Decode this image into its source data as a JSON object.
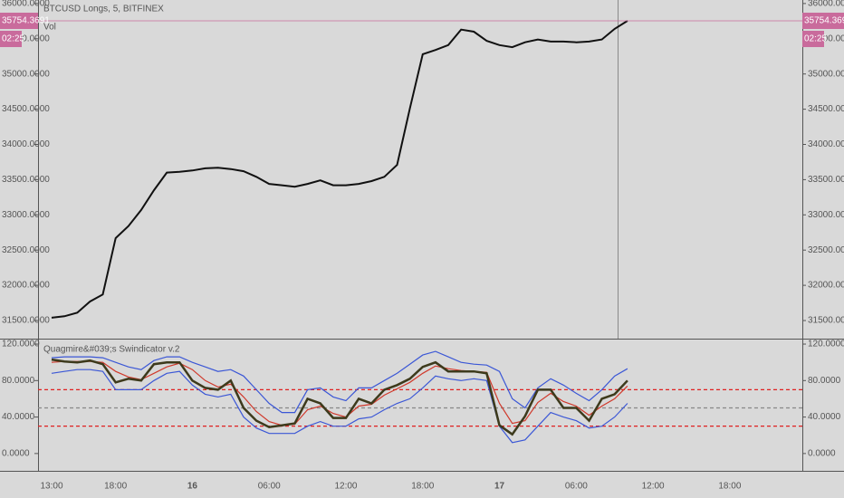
{
  "chart_data": [
    {
      "type": "line",
      "title": "BTCUSD Longs, 5, BITFINEX",
      "subtitle": "Vol",
      "countdown": "02:25",
      "categories": [
        "13:00",
        null,
        null,
        null,
        null,
        "18:00",
        null,
        null,
        null,
        null,
        null,
        "16",
        null,
        null,
        null,
        null,
        null,
        "06:00",
        null,
        null,
        null,
        null,
        null,
        "12:00",
        null,
        null,
        null,
        null,
        null,
        "18:00",
        null,
        null,
        null,
        null,
        null,
        "17",
        null,
        null,
        null,
        null,
        null,
        "06:00",
        null,
        null,
        null,
        null,
        null,
        "12:00",
        null,
        null,
        null,
        null,
        null,
        "18:00",
        null,
        null,
        null,
        null,
        null
      ],
      "series": [
        {
          "color": "#111111",
          "values": [
            31540,
            31560,
            31610,
            31770,
            31870,
            32670,
            32840,
            33070,
            33350,
            33600,
            33610,
            33630,
            33660,
            33670,
            33650,
            33620,
            33540,
            33440,
            33420,
            33400,
            33440,
            33490,
            33420,
            33420,
            33440,
            33480,
            33540,
            33710,
            34510,
            35280,
            35340,
            35410,
            35630,
            35600,
            35470,
            35410,
            35380,
            35450,
            35490,
            35460,
            35460,
            35450,
            35460,
            35490,
            35640,
            35754.3691,
            null,
            null,
            null,
            null,
            null,
            null,
            null,
            null,
            null,
            null,
            null,
            null,
            null
          ]
        }
      ],
      "last_color": "#c96b9c",
      "ylim": [
        31243,
        36050
      ],
      "yticks": [
        {
          "value": 31500,
          "label": "31500.0000"
        },
        {
          "value": 32000,
          "label": "32000.0000"
        },
        {
          "value": 32500,
          "label": "32500.0000"
        },
        {
          "value": 33000,
          "label": "33000.0000"
        },
        {
          "value": 33500,
          "label": "33500.0000"
        },
        {
          "value": 34000,
          "label": "34000.0000"
        },
        {
          "value": 34500,
          "label": "34500.0000"
        },
        {
          "value": 35000,
          "label": "35000.0000"
        },
        {
          "value": 35500,
          "label": "35500.0000"
        },
        {
          "value": 36000,
          "label": "36000.0000"
        }
      ]
    },
    {
      "type": "line",
      "title": "Quagmire&#039;s Swindicator v.2",
      "series": [
        {
          "color": "#3b57d6",
          "values": [
            105,
            106,
            106,
            106,
            105,
            100,
            95,
            92,
            102,
            106,
            106,
            100,
            95,
            90,
            92,
            85,
            70,
            55,
            45,
            45,
            70,
            72,
            62,
            58,
            72,
            72,
            80,
            88,
            98,
            108,
            112,
            106,
            100,
            98,
            97,
            90,
            60,
            50,
            72,
            82,
            75,
            66,
            58,
            70,
            85,
            93,
            null,
            null,
            null,
            null,
            null,
            null,
            null,
            null,
            null,
            null,
            null,
            null,
            null
          ]
        },
        {
          "color": "#3b57d6",
          "values": [
            88,
            90,
            92,
            92,
            90,
            70,
            70,
            70,
            80,
            88,
            90,
            75,
            65,
            62,
            65,
            40,
            28,
            22,
            22,
            22,
            30,
            35,
            30,
            30,
            38,
            40,
            48,
            55,
            60,
            72,
            85,
            82,
            80,
            82,
            80,
            30,
            12,
            15,
            30,
            45,
            40,
            36,
            28,
            30,
            40,
            55,
            null,
            null,
            null,
            null,
            null,
            null,
            null,
            null,
            null,
            null,
            null,
            null,
            null
          ]
        },
        {
          "color": "#d0392b",
          "values": [
            100,
            101,
            101,
            101,
            100,
            90,
            84,
            81,
            88,
            95,
            99,
            92,
            80,
            73,
            76,
            62,
            46,
            35,
            31,
            32,
            48,
            52,
            44,
            40,
            52,
            54,
            64,
            71,
            78,
            88,
            96,
            93,
            91,
            90,
            89,
            55,
            33,
            36,
            56,
            66,
            57,
            52,
            42,
            52,
            60,
            74,
            null,
            null,
            null,
            null,
            null,
            null,
            null,
            null,
            null,
            null,
            null,
            null,
            null
          ]
        },
        {
          "color": "#3d3a1c",
          "values": [
            103,
            101,
            100,
            102,
            98,
            78,
            82,
            80,
            98,
            100,
            100,
            80,
            72,
            70,
            80,
            50,
            36,
            29,
            31,
            33,
            60,
            55,
            39,
            39,
            60,
            55,
            70,
            75,
            82,
            95,
            100,
            90,
            90,
            90,
            88,
            31,
            21,
            41,
            70,
            70,
            50,
            50,
            36,
            60,
            65,
            80,
            null,
            null,
            null,
            null,
            null,
            null,
            null,
            null,
            null,
            null,
            null,
            null,
            null
          ]
        }
      ],
      "hlines": [
        {
          "value": 70,
          "color": "#e02020"
        },
        {
          "value": 50,
          "color": "#888888"
        },
        {
          "value": 30,
          "color": "#e02020"
        }
      ],
      "ylim": [
        -19,
        124
      ],
      "yticks": [
        {
          "value": 0,
          "label": "0.0000"
        },
        {
          "value": 40,
          "label": "40.0000"
        },
        {
          "value": 80,
          "label": "80.0000"
        },
        {
          "value": 120,
          "label": "120.0000"
        }
      ]
    }
  ]
}
